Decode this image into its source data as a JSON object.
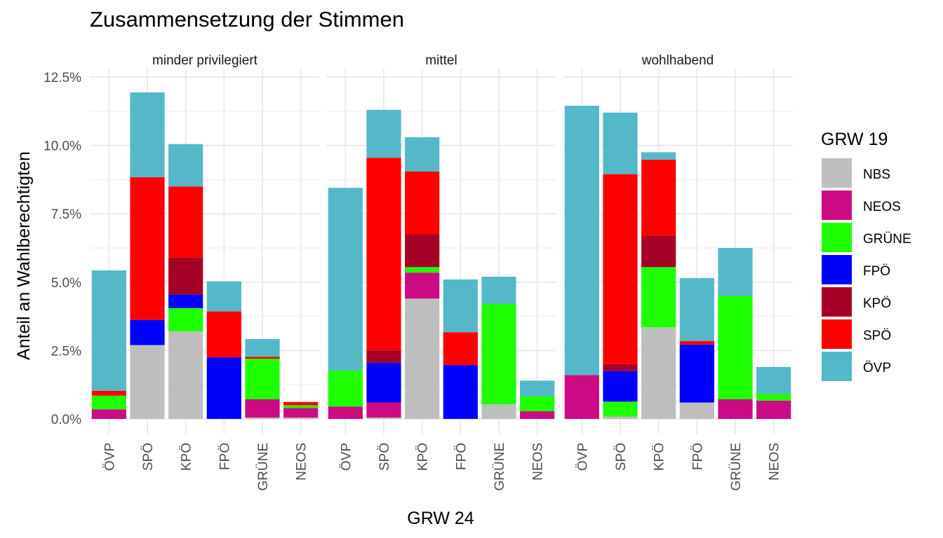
{
  "chart_data": {
    "type": "bar",
    "stacked": true,
    "title": "Zusammensetzung der Stimmen",
    "xlabel": "GRW 24",
    "ylabel": "Anteil an Wahlberechtigten",
    "ylim": [
      0,
      12.5
    ],
    "y_unit": "%",
    "y_ticks": [
      "0.0%",
      "2.5%",
      "5.0%",
      "7.5%",
      "10.0%",
      "12.5%"
    ],
    "grid": true,
    "categories": [
      "ÖVP",
      "SPÖ",
      "KPÖ",
      "FPÖ",
      "GRÜNE",
      "NEOS"
    ],
    "legend": {
      "title": "GRW 19",
      "position": "right",
      "items": [
        {
          "name": "NBS",
          "color": "#BEBEBE"
        },
        {
          "name": "NEOS",
          "color": "#CC0A84"
        },
        {
          "name": "GRÜNE",
          "color": "#1EFF00"
        },
        {
          "name": "FPÖ",
          "color": "#0000FF"
        },
        {
          "name": "KPÖ",
          "color": "#A50026"
        },
        {
          "name": "SPÖ",
          "color": "#FF0000"
        },
        {
          "name": "ÖVP",
          "color": "#55B8C9"
        }
      ]
    },
    "stack_order": [
      "NBS",
      "NEOS",
      "GRÜNE",
      "FPÖ",
      "KPÖ",
      "SPÖ",
      "ÖVP"
    ],
    "panels": [
      {
        "label": "minder privilegiert",
        "bars": [
          {
            "category": "ÖVP",
            "values": {
              "NBS": 0,
              "NEOS": 0.35,
              "GRÜNE": 0.5,
              "FPÖ": 0,
              "KPÖ": 0,
              "SPÖ": 0.18,
              "ÖVP": 4.4
            }
          },
          {
            "category": "SPÖ",
            "values": {
              "NBS": 2.7,
              "NEOS": 0,
              "GRÜNE": 0,
              "FPÖ": 0.92,
              "KPÖ": 0,
              "SPÖ": 5.22,
              "ÖVP": 3.1
            }
          },
          {
            "category": "KPÖ",
            "values": {
              "NBS": 3.2,
              "NEOS": 0,
              "GRÜNE": 0.85,
              "FPÖ": 0.5,
              "KPÖ": 1.35,
              "SPÖ": 2.6,
              "ÖVP": 1.55
            }
          },
          {
            "category": "FPÖ",
            "values": {
              "NBS": 0,
              "NEOS": 0,
              "GRÜNE": 0,
              "FPÖ": 2.25,
              "KPÖ": 0,
              "SPÖ": 1.68,
              "ÖVP": 1.1
            }
          },
          {
            "category": "GRÜNE",
            "values": {
              "NBS": 0.05,
              "NEOS": 0.67,
              "GRÜNE": 1.48,
              "FPÖ": 0,
              "KPÖ": 0,
              "SPÖ": 0.07,
              "ÖVP": 0.65
            }
          },
          {
            "category": "NEOS",
            "values": {
              "NBS": 0.05,
              "NEOS": 0.35,
              "GRÜNE": 0.1,
              "FPÖ": 0,
              "KPÖ": 0,
              "SPÖ": 0.12,
              "ÖVP": 0
            }
          }
        ]
      },
      {
        "label": "mittel",
        "bars": [
          {
            "category": "ÖVP",
            "values": {
              "NBS": 0,
              "NEOS": 0.45,
              "GRÜNE": 1.32,
              "FPÖ": 0,
              "KPÖ": 0,
              "SPÖ": 0,
              "ÖVP": 6.68
            }
          },
          {
            "category": "SPÖ",
            "values": {
              "NBS": 0.05,
              "NEOS": 0.55,
              "GRÜNE": 0,
              "FPÖ": 1.45,
              "KPÖ": 0.45,
              "SPÖ": 7.05,
              "ÖVP": 1.75
            }
          },
          {
            "category": "KPÖ",
            "values": {
              "NBS": 4.4,
              "NEOS": 0.95,
              "GRÜNE": 0.2,
              "FPÖ": 0,
              "KPÖ": 1.2,
              "SPÖ": 2.3,
              "ÖVP": 1.25
            }
          },
          {
            "category": "FPÖ",
            "values": {
              "NBS": 0,
              "NEOS": 0,
              "GRÜNE": 0,
              "FPÖ": 1.97,
              "KPÖ": 0,
              "SPÖ": 1.2,
              "ÖVP": 1.93
            }
          },
          {
            "category": "GRÜNE",
            "values": {
              "NBS": 0.53,
              "NEOS": 0,
              "GRÜNE": 3.67,
              "FPÖ": 0,
              "KPÖ": 0,
              "SPÖ": 0,
              "ÖVP": 1.0
            }
          },
          {
            "category": "NEOS",
            "values": {
              "NBS": 0,
              "NEOS": 0.28,
              "GRÜNE": 0.55,
              "FPÖ": 0,
              "KPÖ": 0,
              "SPÖ": 0,
              "ÖVP": 0.57
            }
          }
        ]
      },
      {
        "label": "wohlhabend",
        "bars": [
          {
            "category": "ÖVP",
            "values": {
              "NBS": 0,
              "NEOS": 1.6,
              "GRÜNE": 0,
              "FPÖ": 0,
              "KPÖ": 0,
              "SPÖ": 0,
              "ÖVP": 9.85
            }
          },
          {
            "category": "SPÖ",
            "values": {
              "NBS": 0.08,
              "NEOS": 0,
              "GRÜNE": 0.55,
              "FPÖ": 1.12,
              "KPÖ": 0.25,
              "SPÖ": 6.95,
              "ÖVP": 2.25
            }
          },
          {
            "category": "KPÖ",
            "values": {
              "NBS": 3.35,
              "NEOS": 0,
              "GRÜNE": 2.2,
              "FPÖ": 0,
              "KPÖ": 1.15,
              "SPÖ": 2.78,
              "ÖVP": 0.27
            }
          },
          {
            "category": "FPÖ",
            "values": {
              "NBS": 0.6,
              "NEOS": 0,
              "GRÜNE": 0,
              "FPÖ": 2.12,
              "KPÖ": 0,
              "SPÖ": 0.13,
              "ÖVP": 2.3
            }
          },
          {
            "category": "GRÜNE",
            "values": {
              "NBS": 0,
              "NEOS": 0.72,
              "GRÜNE": 3.78,
              "FPÖ": 0,
              "KPÖ": 0,
              "SPÖ": 0,
              "ÖVP": 1.75
            }
          },
          {
            "category": "NEOS",
            "values": {
              "NBS": 0,
              "NEOS": 0.67,
              "GRÜNE": 0.25,
              "FPÖ": 0,
              "KPÖ": 0,
              "SPÖ": 0,
              "ÖVP": 0.98
            }
          }
        ]
      }
    ]
  }
}
